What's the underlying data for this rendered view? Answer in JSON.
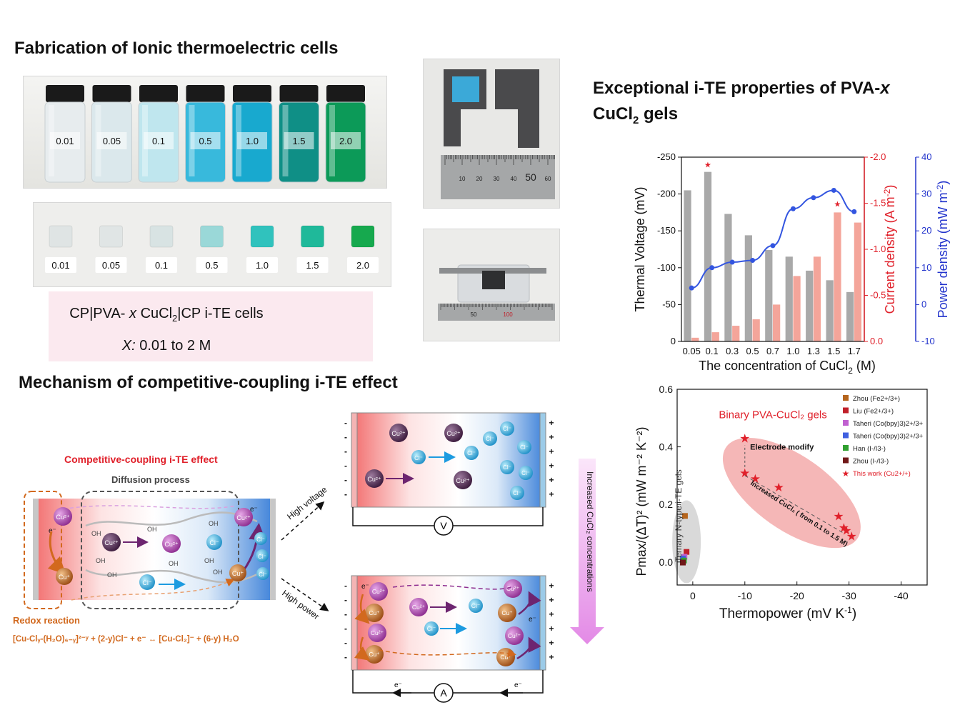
{
  "sections": {
    "fabrication_title": "Fabrication of Ionic thermoelectric cells",
    "properties_title_line1": "Exceptional i-TE properties of PVA-",
    "properties_title_x": "x",
    "properties_title_line2a": "CuCl",
    "properties_title_line2sub": "2",
    "properties_title_line2b": " gels",
    "mechanism_title": "Mechanism of competitive-coupling i-TE effect"
  },
  "vials": {
    "labels": [
      "0.01",
      "0.05",
      "0.1",
      "0.5",
      "1.0",
      "1.5",
      "2.0"
    ],
    "colors": [
      "#e7ecee",
      "#dbe8ec",
      "#bfe6ee",
      "#38b9dc",
      "#18a9cf",
      "#0f8f86",
      "#0c9a58"
    ]
  },
  "gels": {
    "labels": [
      "0.01",
      "0.05",
      "0.1",
      "0.5",
      "1.0",
      "1.5",
      "2.0"
    ],
    "colors": [
      "#dfe4e4",
      "#e0e5e5",
      "#d8e3e3",
      "#9ad8d8",
      "#30c2bd",
      "#1fb99a",
      "#16a94e"
    ]
  },
  "cell_info": {
    "line1_a": "CP|PVA- ",
    "line1_x": "x",
    "line1_b": " CuCl",
    "line1_sub": "2",
    "line1_c": "|CP i-TE cells",
    "line2_x": "X:",
    "line2_rest": " 0.01 to 2 M"
  },
  "ruler_labels": [
    "10",
    "20",
    "30",
    "40",
    "50",
    "60"
  ],
  "ruler2_labels": [
    "50",
    "100"
  ],
  "chart_data": [
    {
      "type": "bar",
      "title": "",
      "xlabel_a": "The concentration of CuCl",
      "xlabel_sub": "2",
      "xlabel_b": " (M)",
      "categories": [
        "0.05",
        "0.1",
        "0.3",
        "0.5",
        "0.7",
        "1.0",
        "1.3",
        "1.5",
        "1.7"
      ],
      "series": [
        {
          "name": "Thermal Voltage (mV)",
          "axis": "left",
          "color": "#a9a9a9",
          "values": [
            -205,
            -230,
            -173,
            -144,
            -124,
            -115,
            -96,
            -83,
            -67
          ]
        },
        {
          "name": "Current density (A m-2)",
          "axis": "right1",
          "color": "#f4a59a",
          "values": [
            -0.04,
            -0.1,
            -0.17,
            -0.24,
            -0.4,
            -0.71,
            -0.92,
            -1.4,
            -1.29
          ]
        },
        {
          "name": "Power density (mW m-2)",
          "axis": "right2",
          "color": "#3355e0",
          "type": "line",
          "values": [
            4.5,
            10,
            11.5,
            12,
            16,
            26,
            29,
            31,
            25.2
          ]
        }
      ],
      "left_axis": {
        "label": "Thermal Voltage (mV)",
        "ticks": [
          "-250",
          "-200",
          "-150",
          "-100",
          "-50",
          "0"
        ],
        "range": [
          0,
          -250
        ]
      },
      "right1_axis": {
        "label_a": "Current density (A m",
        "label_sup": "-2",
        "label_b": ")",
        "ticks": [
          "-2.0",
          "-1.5",
          "-1.0",
          "-0.5",
          "0.0"
        ],
        "range": [
          0,
          -2.0
        ]
      },
      "right2_axis": {
        "label_a": "Power density (mW m",
        "label_sup": "-2",
        "label_b": ")",
        "ticks": [
          "40",
          "30",
          "20",
          "10",
          "0",
          "-10"
        ],
        "range": [
          -10,
          40
        ]
      },
      "stars": [
        1,
        7
      ],
      "star_glyph": "★"
    },
    {
      "type": "scatter",
      "xlabel_a": "Thermopower (mV K",
      "xlabel_sup": "-1",
      "xlabel_b": ")",
      "ylabel": "Pmax/(ΔT)² (mW m⁻² K⁻²)",
      "x_ticks": [
        "0",
        "-10",
        "-20",
        "-30",
        "-40"
      ],
      "y_ticks": [
        "0.0",
        "0.2",
        "0.4",
        "0.6"
      ],
      "xlim": [
        3,
        -45
      ],
      "ylim": [
        -0.08,
        0.6
      ],
      "series": [
        {
          "name": "This work (Cu2+/+)",
          "color": "#e0202a",
          "points": [
            [
              -10,
              0.43
            ],
            [
              -10,
              0.31
            ],
            [
              -12,
              0.29
            ],
            [
              -16.5,
              0.26
            ],
            [
              -28,
              0.16
            ],
            [
              -29,
              0.12
            ],
            [
              -29.5,
              0.11
            ],
            [
              -30.5,
              0.09
            ]
          ]
        },
        {
          "name": "Zhou (Fe2+/3+)",
          "color": "#b5651d",
          "points": [
            [
              1.5,
              0.16
            ]
          ]
        },
        {
          "name": "Liu (Fe2+/3+)",
          "color": "#c0202a",
          "points": [
            [
              1.2,
              0.035
            ]
          ]
        },
        {
          "name": "Taheri (Co(bpy)3)2+/3+",
          "color": "#c060d0",
          "points": [
            [
              1.6,
              0.018
            ]
          ]
        },
        {
          "name": "Taheri (Co(bpy)3)2+/3+",
          "color": "#4060e0",
          "points": [
            [
              1.9,
              0.012
            ]
          ]
        },
        {
          "name": "Han (I-/I3-)",
          "color": "#30a030",
          "points": [
            [
              1.7,
              0.005
            ]
          ]
        },
        {
          "name": "Zhou (I-/I3-)",
          "color": "#701818",
          "points": [
            [
              1.9,
              -0.002
            ]
          ]
        }
      ],
      "legend": [
        "Zhou (Fe2+/3+)",
        "Liu (Fe2+/3+)",
        "Taheri (Co(bpy)3)2+/3+",
        "Taheri (Co(bpy)3)2+/3+",
        "Han (I-/I3-)",
        "Zhou (I-/I3-)",
        "This work (Cu2+/+)"
      ],
      "annotations": {
        "binary": "Binary PVA-CuCl₂ gels",
        "electrode": "Electrode modify",
        "increased": "Increased CuCl₂ ( from 0.1 to 1.5 M)",
        "ternary": "Ternary N-type i-TE gels"
      }
    }
  ],
  "mechanism": {
    "effect_title": "Competitive-coupling i-TE effect",
    "diffusion": "Diffusion process",
    "redox": "Redox reaction",
    "equation": "[Cu-Clᵧ-(H₂O)₆₋ᵧ]²⁻ʸ + (2-y)Cl⁻ + e⁻ ↔ [Cu-Cl₂]⁻ + (6-y) H₂O",
    "cu2": "Cu²⁺",
    "cu1": "Cu⁺",
    "cl": "Cl⁻",
    "oh": "OH",
    "eminus": "e⁻",
    "high_voltage": "High voltage",
    "high_power": "High power",
    "volt_symbol": "V",
    "amp_symbol": "A",
    "increased_conc": "Increased CuCl₂ concentrations",
    "minus": "-",
    "plus": "+"
  }
}
